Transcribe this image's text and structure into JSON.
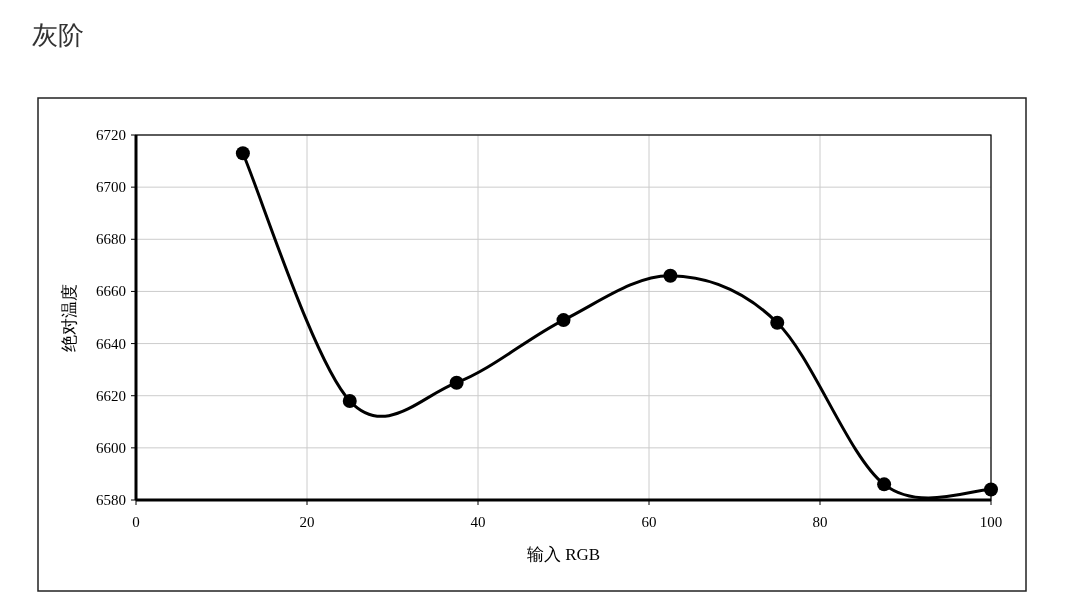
{
  "chart_data": {
    "type": "line",
    "title": "灰阶",
    "xlabel": "输入 RGB",
    "ylabel": "绝对温度",
    "x": [
      12.5,
      25,
      37.5,
      50,
      62.5,
      75,
      87.5,
      100
    ],
    "series": [
      {
        "color": "#000000",
        "values": [
          6713,
          6618,
          6625,
          6649,
          6666,
          6648,
          6586,
          6584
        ]
      }
    ],
    "xlim": [
      0,
      100
    ],
    "xticks": [
      0,
      20,
      40,
      60,
      80,
      100
    ],
    "ylim": [
      6580,
      6720
    ],
    "yticks": [
      6580,
      6600,
      6620,
      6640,
      6660,
      6680,
      6700,
      6720
    ],
    "grid": true,
    "marker": "circle",
    "line_style": "solid"
  }
}
